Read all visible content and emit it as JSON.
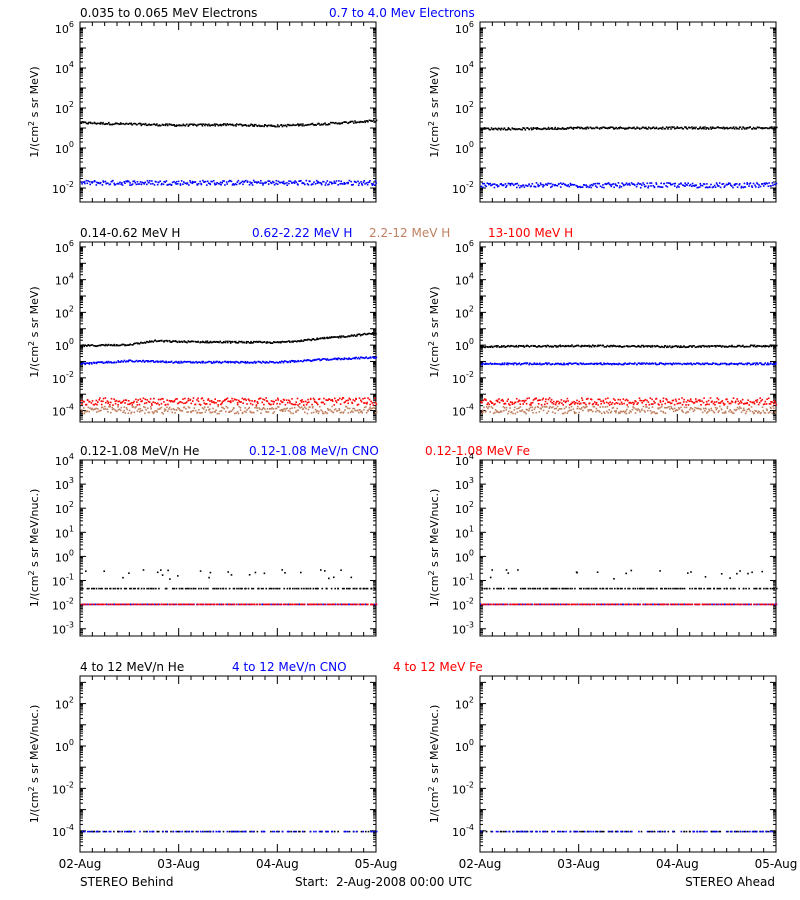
{
  "colors": {
    "black": "#000000",
    "blue": "#0000ff",
    "brown": "#c08060",
    "red": "#ff0000"
  },
  "x_tick_labels": [
    "02-Aug",
    "03-Aug",
    "04-Aug",
    "05-Aug"
  ],
  "footer": {
    "left": "STEREO Behind",
    "center": "Start:  2-Aug-2008 00:00 UTC",
    "right": "STEREO Ahead"
  },
  "chart_data": [
    {
      "type": "scatter",
      "panel": "electrons",
      "spacecraft": "STEREO Behind",
      "header": [
        {
          "text": "0.035 to 0.065 MeV Electrons",
          "color": "#000000"
        },
        {
          "text": "0.7 to 4.0 Mev Electrons",
          "color": "#0000ff"
        }
      ],
      "ylabel": "1/(cm² s sr MeV)",
      "yscale": "log",
      "ylim": [
        0.002,
        2000000
      ],
      "yticks": [
        0.01,
        1,
        100,
        10000,
        1000000
      ],
      "ytick_labels": [
        "10⁻²",
        "10⁰",
        "10²",
        "10⁴",
        "10⁶"
      ],
      "xlim": [
        "2008-08-02",
        "2008-08-05"
      ],
      "series": [
        {
          "name": "0.035 to 0.065 MeV Electrons",
          "color": "#000000",
          "x": [
            "2008-08-02",
            "2008-08-02T12:00",
            "2008-08-03",
            "2008-08-03T12:00",
            "2008-08-04",
            "2008-08-04T12:00",
            "2008-08-05"
          ],
          "values": [
            20,
            17,
            15,
            16,
            14,
            18,
            25
          ]
        },
        {
          "name": "0.7 to 4.0 Mev Electrons",
          "color": "#0000ff",
          "x": [
            "2008-08-02",
            "2008-08-02T12:00",
            "2008-08-03",
            "2008-08-03T12:00",
            "2008-08-04",
            "2008-08-04T12:00",
            "2008-08-05"
          ],
          "values": [
            0.02,
            0.02,
            0.02,
            0.02,
            0.02,
            0.02,
            0.02
          ]
        }
      ]
    },
    {
      "type": "scatter",
      "panel": "electrons",
      "spacecraft": "STEREO Ahead",
      "header": [],
      "ylabel": "1/(cm² s sr MeV)",
      "yscale": "log",
      "ylim": [
        0.002,
        2000000
      ],
      "yticks": [
        0.01,
        1,
        100,
        10000,
        1000000
      ],
      "ytick_labels": [
        "10⁻²",
        "10⁰",
        "10²",
        "10⁴",
        "10⁶"
      ],
      "xlim": [
        "2008-08-02",
        "2008-08-05"
      ],
      "series": [
        {
          "name": "0.035 to 0.065 MeV Electrons",
          "color": "#000000",
          "x": [
            "2008-08-02",
            "2008-08-02T12:00",
            "2008-08-03",
            "2008-08-03T12:00",
            "2008-08-04",
            "2008-08-04T12:00",
            "2008-08-05"
          ],
          "values": [
            10,
            10,
            11,
            11,
            11,
            11,
            11
          ]
        },
        {
          "name": "0.7 to 4.0 Mev Electrons",
          "color": "#0000ff",
          "x": [
            "2008-08-02",
            "2008-08-02T12:00",
            "2008-08-03",
            "2008-08-03T12:00",
            "2008-08-04",
            "2008-08-04T12:00",
            "2008-08-05"
          ],
          "values": [
            0.015,
            0.015,
            0.015,
            0.015,
            0.015,
            0.015,
            0.015
          ]
        }
      ]
    },
    {
      "type": "scatter",
      "panel": "protons",
      "spacecraft": "STEREO Behind",
      "header": [
        {
          "text": "0.14-0.62 MeV H",
          "color": "#000000"
        },
        {
          "text": "0.62-2.22 MeV H",
          "color": "#0000ff"
        },
        {
          "text": "2.2-12 MeV H",
          "color": "#c08060"
        },
        {
          "text": "13-100 MeV H",
          "color": "#ff0000"
        }
      ],
      "ylabel": "1/(cm² s sr MeV)",
      "yscale": "log",
      "ylim": [
        2e-05,
        2000000
      ],
      "yticks": [
        0.0001,
        0.01,
        1,
        100,
        10000,
        1000000
      ],
      "ytick_labels": [
        "10⁻⁴",
        "10⁻²",
        "10⁰",
        "10²",
        "10⁴",
        "10⁶"
      ],
      "xlim": [
        "2008-08-02",
        "2008-08-05"
      ],
      "series": [
        {
          "name": "0.14-0.62 MeV H",
          "color": "#000000",
          "x": [
            "2008-08-02",
            "2008-08-02T12:00",
            "2008-08-02T18:00",
            "2008-08-03",
            "2008-08-03T12:00",
            "2008-08-04",
            "2008-08-04T12:00",
            "2008-08-05"
          ],
          "values": [
            1.0,
            1.2,
            2.0,
            1.8,
            1.7,
            1.6,
            3.0,
            6.0
          ]
        },
        {
          "name": "0.62-2.22 MeV H",
          "color": "#0000ff",
          "x": [
            "2008-08-02",
            "2008-08-02T12:00",
            "2008-08-03",
            "2008-08-03T12:00",
            "2008-08-04",
            "2008-08-04T12:00",
            "2008-08-05"
          ],
          "values": [
            0.08,
            0.12,
            0.1,
            0.1,
            0.1,
            0.15,
            0.2
          ]
        },
        {
          "name": "2.2-12 MeV H",
          "color": "#c08060",
          "x": [
            "2008-08-02",
            "2008-08-03",
            "2008-08-04",
            "2008-08-05"
          ],
          "values": [
            0.00012,
            0.00012,
            0.00012,
            0.00012
          ]
        },
        {
          "name": "13-100 MeV H",
          "color": "#ff0000",
          "x": [
            "2008-08-02",
            "2008-08-03",
            "2008-08-04",
            "2008-08-05"
          ],
          "values": [
            0.0004,
            0.0004,
            0.0004,
            0.0004
          ]
        }
      ]
    },
    {
      "type": "scatter",
      "panel": "protons",
      "spacecraft": "STEREO Ahead",
      "header": [],
      "ylabel": "1/(cm² s sr MeV)",
      "yscale": "log",
      "ylim": [
        2e-05,
        2000000
      ],
      "yticks": [
        0.0001,
        0.01,
        1,
        100,
        10000,
        1000000
      ],
      "ytick_labels": [
        "10⁻⁴",
        "10⁻²",
        "10⁰",
        "10²",
        "10⁴",
        "10⁶"
      ],
      "xlim": [
        "2008-08-02",
        "2008-08-05"
      ],
      "series": [
        {
          "name": "0.14-0.62 MeV H",
          "color": "#000000",
          "x": [
            "2008-08-02",
            "2008-08-03",
            "2008-08-04",
            "2008-08-05"
          ],
          "values": [
            0.9,
            1.0,
            0.9,
            1.0
          ]
        },
        {
          "name": "0.62-2.22 MeV H",
          "color": "#0000ff",
          "x": [
            "2008-08-02",
            "2008-08-03",
            "2008-08-04",
            "2008-08-05"
          ],
          "values": [
            0.08,
            0.08,
            0.08,
            0.08
          ]
        },
        {
          "name": "2.2-12 MeV H",
          "color": "#c08060",
          "x": [
            "2008-08-02",
            "2008-08-03",
            "2008-08-04",
            "2008-08-05"
          ],
          "values": [
            0.00012,
            0.00012,
            0.00012,
            0.00012
          ]
        },
        {
          "name": "13-100 MeV H",
          "color": "#ff0000",
          "x": [
            "2008-08-02",
            "2008-08-03",
            "2008-08-04",
            "2008-08-05"
          ],
          "values": [
            0.0004,
            0.0004,
            0.0004,
            0.0004
          ]
        }
      ]
    },
    {
      "type": "scatter",
      "panel": "ions_low",
      "spacecraft": "STEREO Behind",
      "header": [
        {
          "text": "0.12-1.08 MeV/n He",
          "color": "#000000"
        },
        {
          "text": "0.12-1.08 MeV/n CNO",
          "color": "#0000ff"
        },
        {
          "text": "0.12-1.08 MeV Fe",
          "color": "#ff0000"
        }
      ],
      "ylabel": "1/(cm² s sr MeV/nuc.)",
      "yscale": "log",
      "ylim": [
        0.0005,
        10000
      ],
      "yticks": [
        0.001,
        0.01,
        0.1,
        1,
        10,
        100,
        1000,
        10000
      ],
      "ytick_labels": [
        "10⁻³",
        "10⁻²",
        "10⁻¹",
        "10⁰",
        "10¹",
        "10²",
        "10³",
        "10⁴"
      ],
      "xlim": [
        "2008-08-02",
        "2008-08-05"
      ],
      "series": [
        {
          "name": "0.12-1.08 MeV/n He",
          "color": "#000000",
          "x": [
            "2008-08-02",
            "2008-08-03",
            "2008-08-04",
            "2008-08-05"
          ],
          "values": [
            0.05,
            0.05,
            0.05,
            0.05
          ]
        },
        {
          "name": "0.12-1.08 MeV/n CNO",
          "color": "#0000ff",
          "x": [
            "2008-08-02",
            "2008-08-03",
            "2008-08-04",
            "2008-08-05"
          ],
          "values": [
            0.011,
            0.011,
            0.011,
            0.011
          ]
        },
        {
          "name": "0.12-1.08 MeV Fe",
          "color": "#ff0000",
          "x": [
            "2008-08-02",
            "2008-08-03",
            "2008-08-04",
            "2008-08-05"
          ],
          "values": [
            0.011,
            0.011,
            0.011,
            0.011
          ]
        }
      ]
    },
    {
      "type": "scatter",
      "panel": "ions_low",
      "spacecraft": "STEREO Ahead",
      "header": [],
      "ylabel": "1/(cm² s sr MeV/nuc.)",
      "yscale": "log",
      "ylim": [
        0.0005,
        10000
      ],
      "yticks": [
        0.001,
        0.01,
        0.1,
        1,
        10,
        100,
        1000,
        10000
      ],
      "ytick_labels": [
        "10⁻³",
        "10⁻²",
        "10⁻¹",
        "10⁰",
        "10¹",
        "10²",
        "10³",
        "10⁴"
      ],
      "xlim": [
        "2008-08-02",
        "2008-08-05"
      ],
      "series": [
        {
          "name": "0.12-1.08 MeV/n He",
          "color": "#000000",
          "x": [
            "2008-08-02",
            "2008-08-03",
            "2008-08-04",
            "2008-08-05"
          ],
          "values": [
            0.05,
            0.05,
            0.05,
            0.05
          ]
        },
        {
          "name": "0.12-1.08 MeV/n CNO",
          "color": "#0000ff",
          "x": [
            "2008-08-02",
            "2008-08-03",
            "2008-08-04",
            "2008-08-05"
          ],
          "values": [
            0.011,
            0.011,
            0.011,
            0.011
          ]
        },
        {
          "name": "0.12-1.08 MeV Fe",
          "color": "#ff0000",
          "x": [
            "2008-08-02",
            "2008-08-03",
            "2008-08-04",
            "2008-08-05"
          ],
          "values": [
            0.011,
            0.011,
            0.011,
            0.011
          ]
        }
      ]
    },
    {
      "type": "scatter",
      "panel": "ions_high",
      "spacecraft": "STEREO Behind",
      "header": [
        {
          "text": "4 to 12 MeV/n He",
          "color": "#000000"
        },
        {
          "text": "4 to 12 MeV/n CNO",
          "color": "#0000ff"
        },
        {
          "text": "4 to 12 MeV Fe",
          "color": "#ff0000"
        }
      ],
      "ylabel": "1/(cm² s sr MeV/nuc.)",
      "yscale": "log",
      "ylim": [
        1e-05,
        2000
      ],
      "yticks": [
        0.0001,
        0.01,
        1,
        100
      ],
      "ytick_labels": [
        "10⁻⁴",
        "10⁻²",
        "10⁰",
        "10²"
      ],
      "xlim": [
        "2008-08-02",
        "2008-08-05"
      ],
      "series": [
        {
          "name": "4 to 12 MeV/n He",
          "color": "#000000",
          "x": [
            "2008-08-02",
            "2008-08-03",
            "2008-08-04",
            "2008-08-05"
          ],
          "values": [
            0.0001,
            0.0001,
            0.0001,
            0.0001
          ]
        },
        {
          "name": "4 to 12 MeV/n CNO",
          "color": "#0000ff",
          "x": [
            "2008-08-02",
            "2008-08-03",
            "2008-08-04",
            "2008-08-05"
          ],
          "values": [
            0.0001,
            0.0001,
            0.0001,
            0.0001
          ]
        }
      ]
    },
    {
      "type": "scatter",
      "panel": "ions_high",
      "spacecraft": "STEREO Ahead",
      "header": [],
      "ylabel": "1/(cm² s sr MeV/nuc.)",
      "yscale": "log",
      "ylim": [
        1e-05,
        2000
      ],
      "yticks": [
        0.0001,
        0.01,
        1,
        100
      ],
      "ytick_labels": [
        "10⁻⁴",
        "10⁻²",
        "10⁰",
        "10²"
      ],
      "xlim": [
        "2008-08-02",
        "2008-08-05"
      ],
      "series": [
        {
          "name": "4 to 12 MeV/n He",
          "color": "#000000",
          "x": [
            "2008-08-02",
            "2008-08-03",
            "2008-08-04",
            "2008-08-05"
          ],
          "values": [
            0.0001,
            0.0001,
            0.0001,
            0.0001
          ]
        },
        {
          "name": "4 to 12 MeV/n CNO",
          "color": "#0000ff",
          "x": [
            "2008-08-02",
            "2008-08-03",
            "2008-08-04",
            "2008-08-05"
          ],
          "values": [
            0.0001,
            0.0001,
            0.0001,
            0.0001
          ]
        }
      ]
    }
  ]
}
